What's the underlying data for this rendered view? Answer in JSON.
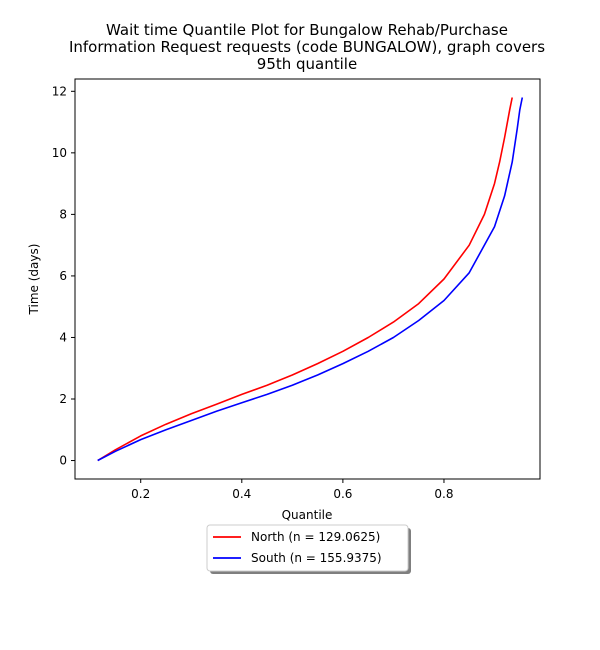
{
  "chart_data": {
    "type": "line",
    "title": [
      "Wait time Quantile Plot for Bungalow Rehab/Purchase",
      "Information Request  requests (code BUNGALOW), graph covers",
      "95th quantile"
    ],
    "xlabel": "Quantile",
    "ylabel": "Time (days)",
    "xlim": [
      0.07,
      0.99
    ],
    "ylim": [
      -0.6,
      12.4
    ],
    "xticks": [
      0.2,
      0.4,
      0.6,
      0.8
    ],
    "xtick_labels": [
      "0.2",
      "0.4",
      "0.6",
      "0.8"
    ],
    "yticks": [
      0,
      2,
      4,
      6,
      8,
      10,
      12
    ],
    "ytick_labels": [
      "0",
      "2",
      "4",
      "6",
      "8",
      "10",
      "12"
    ],
    "grid": false,
    "legend_position": "below-center",
    "series": [
      {
        "name": "North (n = 129.0625)",
        "color": "#ff0000",
        "x": [
          0.115,
          0.15,
          0.2,
          0.25,
          0.3,
          0.35,
          0.4,
          0.45,
          0.5,
          0.55,
          0.6,
          0.65,
          0.7,
          0.75,
          0.8,
          0.85,
          0.88,
          0.9,
          0.91,
          0.92,
          0.93,
          0.935
        ],
        "y": [
          0.0,
          0.35,
          0.8,
          1.18,
          1.52,
          1.83,
          2.15,
          2.45,
          2.78,
          3.15,
          3.55,
          4.0,
          4.5,
          5.1,
          5.9,
          7.0,
          8.0,
          9.0,
          9.7,
          10.5,
          11.4,
          11.8
        ]
      },
      {
        "name": "South (n = 155.9375)",
        "color": "#0000ff",
        "x": [
          0.115,
          0.15,
          0.2,
          0.25,
          0.3,
          0.35,
          0.4,
          0.45,
          0.5,
          0.55,
          0.6,
          0.65,
          0.7,
          0.75,
          0.8,
          0.85,
          0.9,
          0.92,
          0.935,
          0.945,
          0.95,
          0.955
        ],
        "y": [
          0.0,
          0.3,
          0.68,
          1.0,
          1.3,
          1.6,
          1.88,
          2.15,
          2.45,
          2.78,
          3.15,
          3.55,
          4.0,
          4.55,
          5.2,
          6.1,
          7.6,
          8.6,
          9.7,
          10.8,
          11.4,
          11.8
        ]
      }
    ]
  }
}
